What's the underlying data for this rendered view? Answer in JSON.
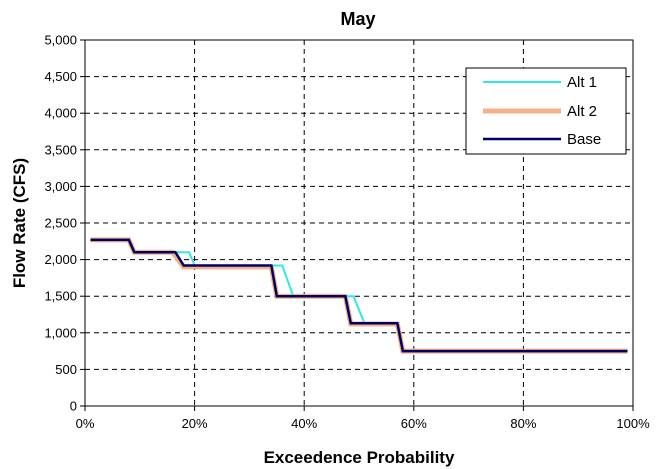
{
  "chart_data": {
    "type": "line",
    "title": "May",
    "xlabel": "Exceedence Probability",
    "ylabel": "Flow Rate (CFS)",
    "xlim": [
      0,
      100
    ],
    "ylim": [
      0,
      5000
    ],
    "x_ticks": [
      "0%",
      "20%",
      "40%",
      "60%",
      "80%",
      "100%"
    ],
    "x_tick_values": [
      0,
      20,
      40,
      60,
      80,
      100
    ],
    "y_ticks": [
      "0",
      "500",
      "1,000",
      "1,500",
      "2,000",
      "2,500",
      "3,000",
      "3,500",
      "4,000",
      "4,500",
      "5,000"
    ],
    "y_tick_values": [
      0,
      500,
      1000,
      1500,
      2000,
      2500,
      3000,
      3500,
      4000,
      4500,
      5000
    ],
    "grid": true,
    "legend_position": "top-right",
    "series": [
      {
        "name": "Alt 1",
        "color": "#33e6e6",
        "x": [
          1,
          8,
          9,
          17,
          19,
          20,
          36,
          38,
          49,
          51,
          57,
          58,
          99
        ],
        "y": [
          2270,
          2270,
          2100,
          2100,
          2100,
          1920,
          1920,
          1500,
          1500,
          1130,
          1130,
          750,
          750
        ]
      },
      {
        "name": "Alt 2",
        "color": "#f4b183",
        "x": [
          1,
          8,
          9,
          16,
          18,
          34,
          35,
          47.5,
          48.5,
          57,
          58,
          99
        ],
        "y": [
          2270,
          2270,
          2100,
          2100,
          1900,
          1900,
          1500,
          1500,
          1120,
          1120,
          750,
          750
        ]
      },
      {
        "name": "Base",
        "color": "#000066",
        "x": [
          1,
          8,
          9,
          16.5,
          18,
          34,
          35,
          47.5,
          48.5,
          57,
          58,
          99
        ],
        "y": [
          2270,
          2270,
          2100,
          2100,
          1920,
          1920,
          1500,
          1500,
          1130,
          1130,
          750,
          750
        ]
      }
    ]
  }
}
